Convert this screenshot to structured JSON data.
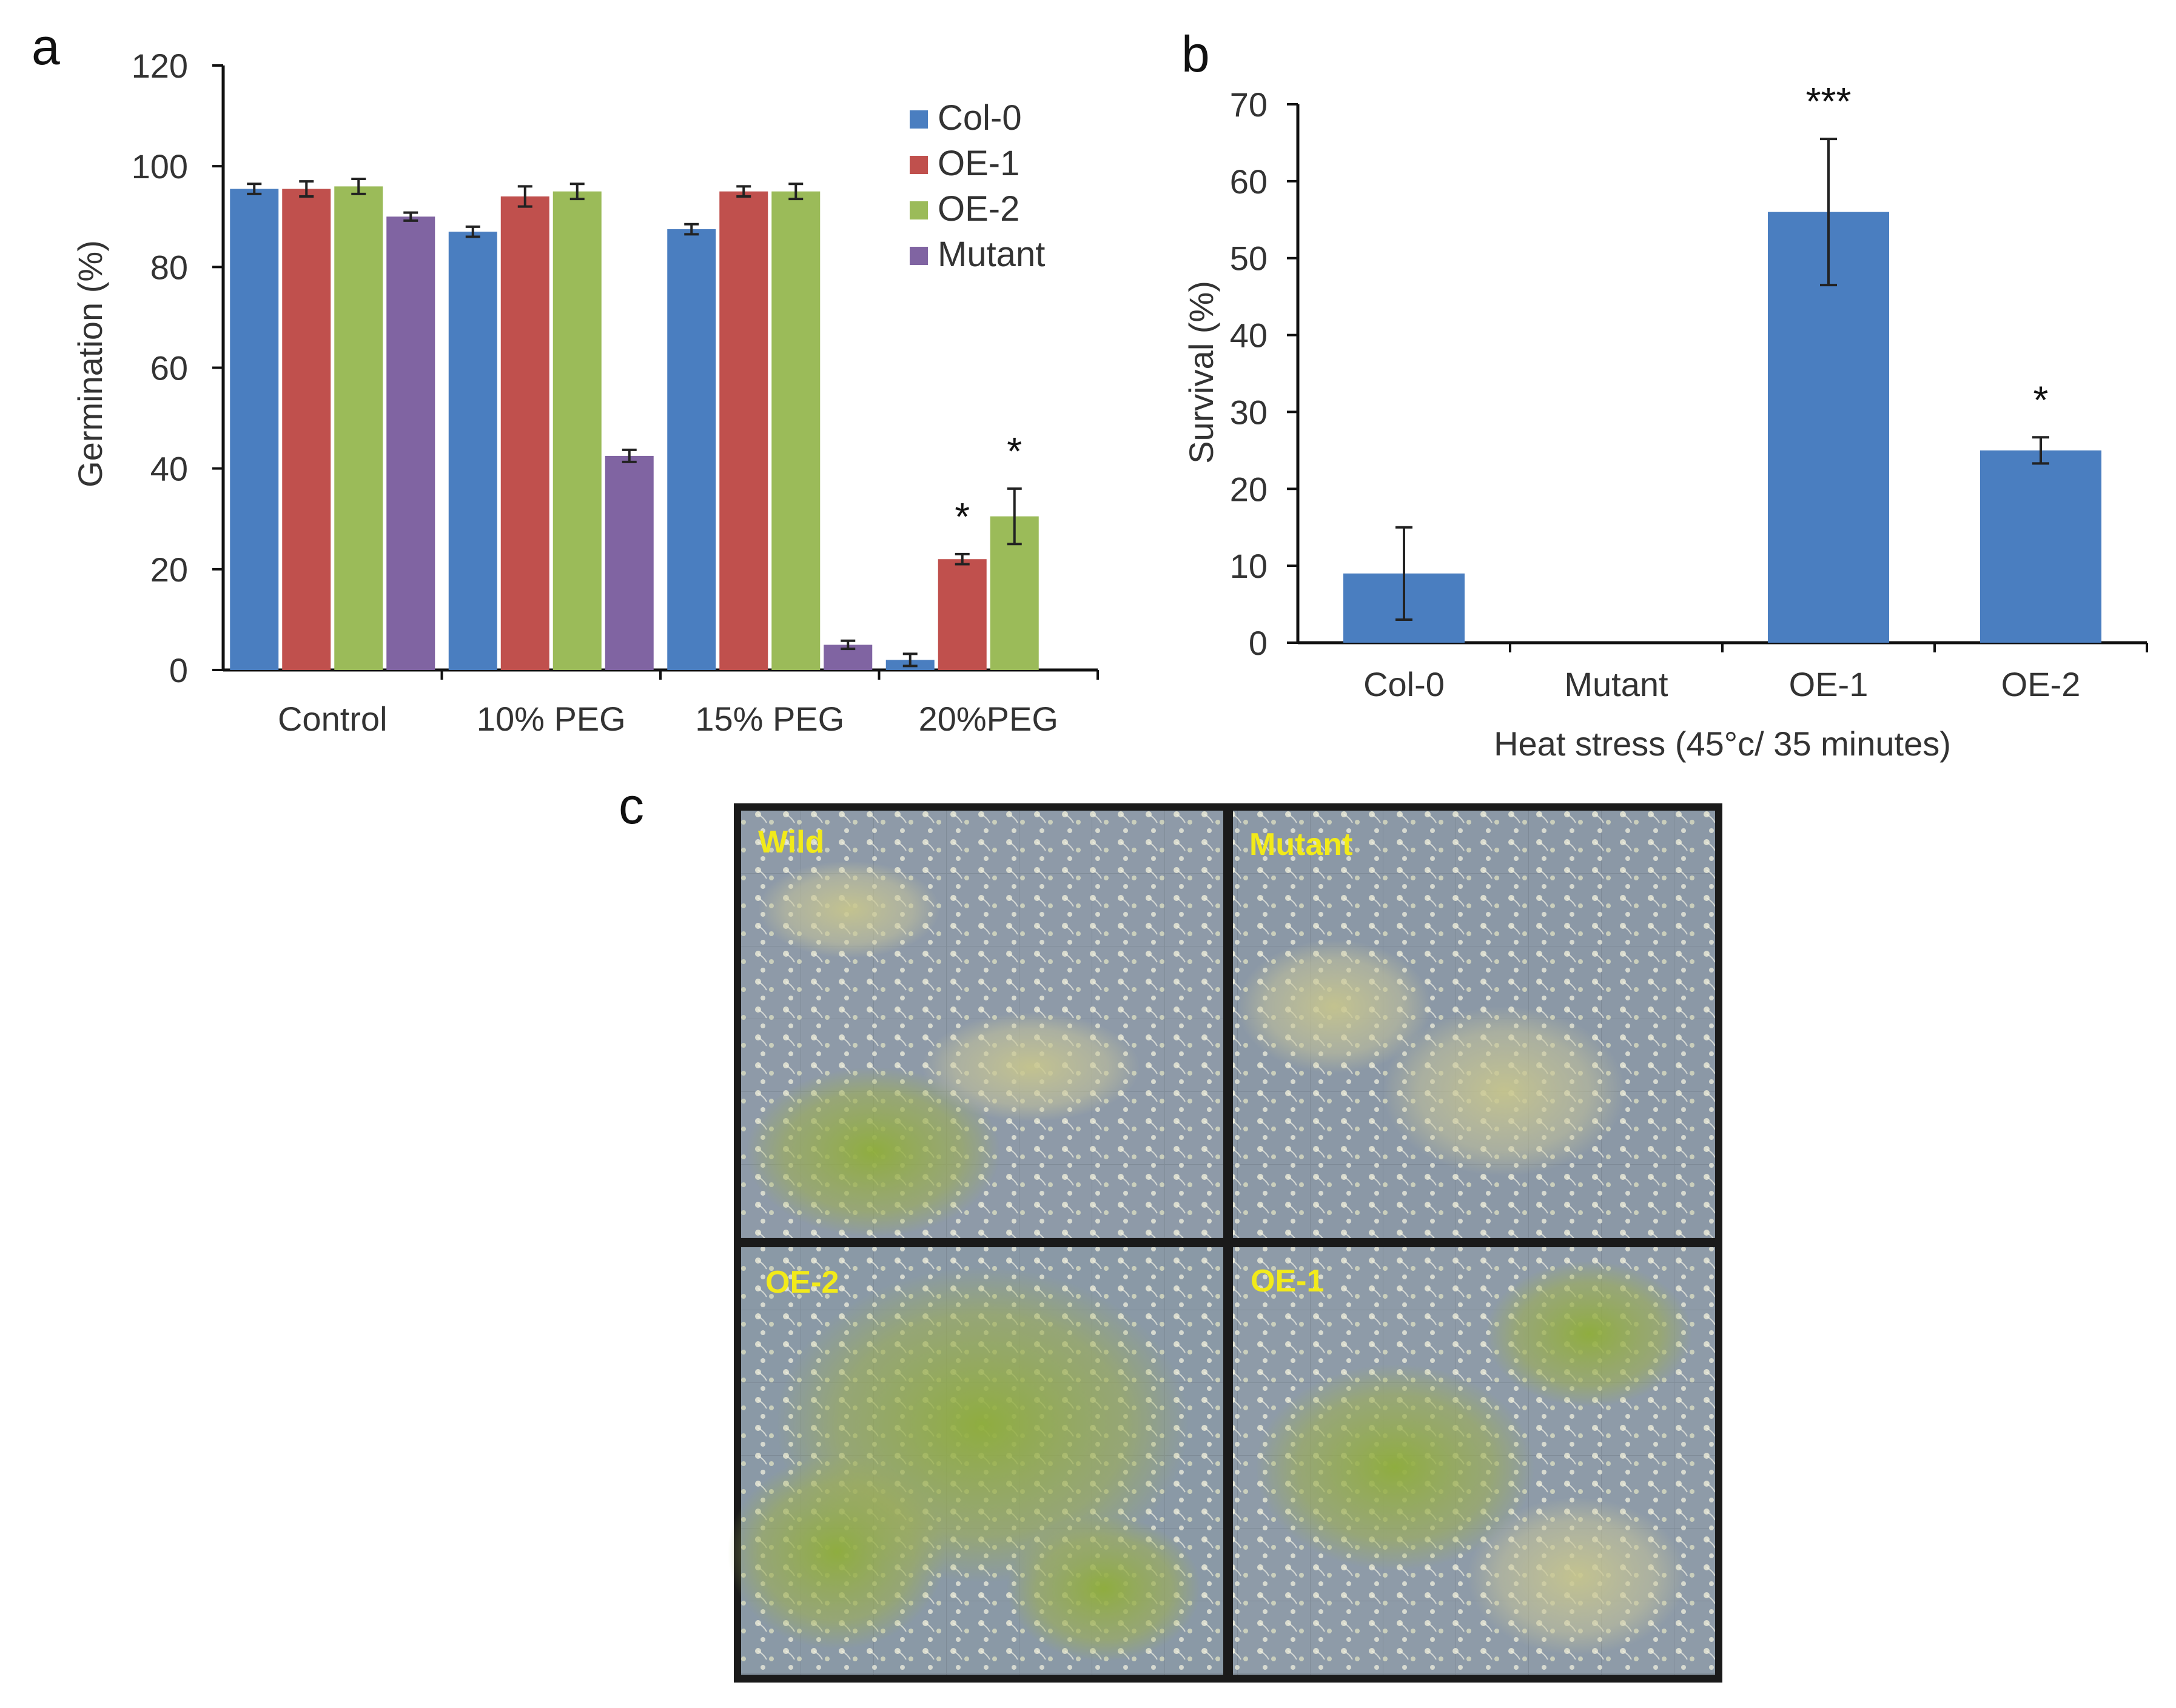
{
  "colors": {
    "col0": "#4a7ec0",
    "oe1": "#c0504d",
    "oe2": "#9bbb59",
    "mutant": "#8064a2",
    "survival": "#4a7ec0",
    "photo_label": "#f2ea1a"
  },
  "panels": {
    "a": "a",
    "b": "b",
    "c": "c"
  },
  "chart_data": [
    {
      "panel": "a",
      "type": "bar",
      "ylabel": "Germination (%)",
      "xlabel": "",
      "ylim": [
        0,
        120
      ],
      "yticks": [
        "0",
        "20",
        "40",
        "60",
        "80",
        "100",
        "120"
      ],
      "categories": [
        "Control",
        "10% PEG",
        "15% PEG",
        "20%PEG"
      ],
      "legend_position": "top-right",
      "series": [
        {
          "name": "Col-0",
          "color_key": "col0",
          "values": [
            95.5,
            87,
            87.5,
            2
          ],
          "errors": [
            1,
            1,
            1,
            1.2
          ]
        },
        {
          "name": "OE-1",
          "color_key": "oe1",
          "values": [
            95.5,
            94,
            95,
            22
          ],
          "errors": [
            1.5,
            2,
            1,
            1
          ]
        },
        {
          "name": "OE-2",
          "color_key": "oe2",
          "values": [
            96,
            95,
            95,
            30.5
          ],
          "errors": [
            1.5,
            1.5,
            1.5,
            5.5
          ]
        },
        {
          "name": "Mutant",
          "color_key": "mutant",
          "values": [
            90,
            42.5,
            5,
            0
          ],
          "errors": [
            0.8,
            1.2,
            0.8,
            0
          ]
        }
      ],
      "annotations": [
        {
          "text": "*",
          "series": 1,
          "category": 3
        },
        {
          "text": "*",
          "series": 2,
          "category": 3
        }
      ]
    },
    {
      "panel": "b",
      "type": "bar",
      "ylabel": "Survival (%)",
      "xlabel": "Heat stress (45°c/ 35 minutes)",
      "ylim": [
        0,
        70
      ],
      "yticks": [
        "0",
        "10",
        "20",
        "30",
        "40",
        "50",
        "60",
        "70"
      ],
      "categories": [
        "Col-0",
        "Mutant",
        "OE-1",
        "OE-2"
      ],
      "series": [
        {
          "name": "Survival",
          "color_key": "survival",
          "values": [
            9,
            0,
            56,
            25
          ],
          "errors": [
            6,
            0,
            9.5,
            1.7
          ]
        }
      ],
      "annotations": [
        {
          "text": "***",
          "category": 2
        },
        {
          "text": "*",
          "category": 3
        }
      ]
    }
  ],
  "photos": {
    "labels": [
      "Wild",
      "Mutant",
      "OE-2",
      "OE-1"
    ]
  }
}
